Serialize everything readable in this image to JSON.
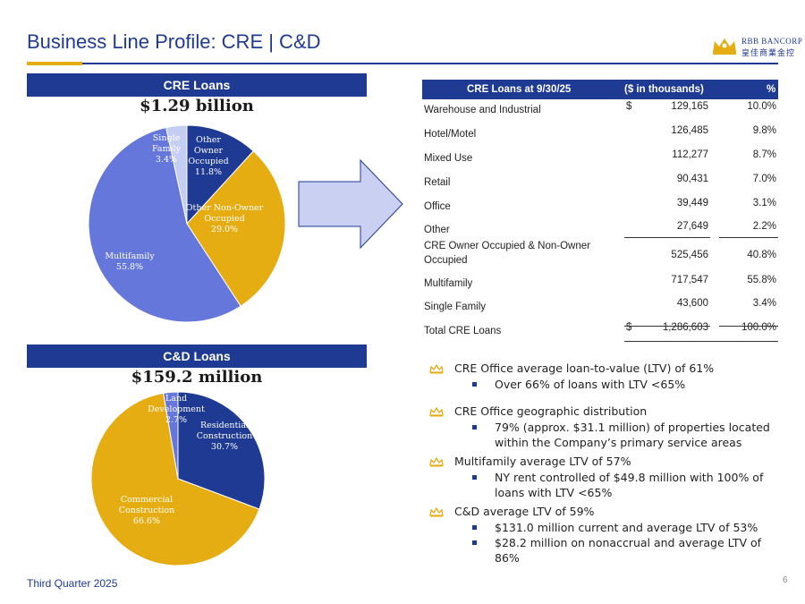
{
  "title": "Business Line Profile:  CRE | C&D",
  "logo": {
    "name": "RBB BANCORP",
    "sub": "皇佳商業金控"
  },
  "cre": {
    "bar_label": "CRE Loans",
    "amount": "$1.29 billion"
  },
  "cd": {
    "bar_label": "C&D Loans",
    "amount": "$159.2 million"
  },
  "chart_data": [
    {
      "type": "pie",
      "title": "CRE Loans",
      "slices": [
        {
          "label": [
            "Other",
            "Owner",
            "Occupied"
          ],
          "pct": "11.8%",
          "value": 11.8,
          "color": "#1f3a93",
          "text_color": "#ffffff"
        },
        {
          "label": [
            "Other Non-Owner",
            "Occupied"
          ],
          "pct": "29.0%",
          "value": 29.0,
          "color": "#e6ad12",
          "text_color": "#ffffff"
        },
        {
          "label": [
            "Multifamily"
          ],
          "pct": "55.8%",
          "value": 55.8,
          "color": "#6677db",
          "text_color": "#ffffff"
        },
        {
          "label": [
            "Single",
            "Family"
          ],
          "pct": "3.4%",
          "value": 3.4,
          "color": "#c5cdf2",
          "text_color": "#ffffff"
        }
      ]
    },
    {
      "type": "pie",
      "title": "C&D Loans",
      "slices": [
        {
          "label": [
            "Residential",
            "Construction"
          ],
          "pct": "30.7%",
          "value": 30.7,
          "color": "#1f3a93",
          "text_color": "#ffffff"
        },
        {
          "label": [
            "Commercial",
            "Construction"
          ],
          "pct": "66.6%",
          "value": 66.6,
          "color": "#e6ad12",
          "text_color": "#ffffff"
        },
        {
          "label": [
            "Land",
            "Development"
          ],
          "pct": "2.7%",
          "value": 2.7,
          "color": "#6677db",
          "text_color": "#ffffff"
        }
      ]
    }
  ],
  "table": {
    "header": {
      "col1": "CRE Loans at 9/30/25",
      "col2": "($ in thousands)",
      "col3": "%"
    },
    "rows": [
      {
        "label": "Warehouse and Industrial",
        "dollar": "$",
        "value": "129,165",
        "pct": "10.0%"
      },
      {
        "label": "Hotel/Motel",
        "dollar": "",
        "value": "126,485",
        "pct": "9.8%"
      },
      {
        "label": "Mixed Use",
        "dollar": "",
        "value": "112,277",
        "pct": "8.7%"
      },
      {
        "label": "Retail",
        "dollar": "",
        "value": "90,431",
        "pct": "7.0%"
      },
      {
        "label": "Office",
        "dollar": "",
        "value": "39,449",
        "pct": "3.1%"
      },
      {
        "label": "Other",
        "dollar": "",
        "value": "27,649",
        "pct": "2.2%"
      },
      {
        "label": "CRE Owner Occupied & Non-Owner",
        "label2": "Occupied",
        "dollar": "",
        "value": "525,456",
        "pct": "40.8%"
      },
      {
        "label": "Multifamily",
        "dollar": "",
        "value": "717,547",
        "pct": "55.8%"
      },
      {
        "label": "Single Family",
        "dollar": "",
        "value": "43,600",
        "pct": "3.4%"
      },
      {
        "label": "Total CRE Loans",
        "dollar": "$",
        "value": "1,286,603",
        "pct": "100.0%"
      }
    ]
  },
  "bullets": [
    {
      "main": "CRE Office average loan-to-value (LTV) of 61%",
      "subs": [
        "Over 66% of loans with LTV <65%"
      ]
    },
    {
      "main": "CRE Office geographic distribution",
      "subs": [
        "79% (approx. $31.1 million) of properties located within the Company’s primary service areas"
      ]
    },
    {
      "main": "Multifamily average LTV of 57%",
      "subs": [
        "NY rent controlled of $49.8 million with 100% of loans with LTV <65%"
      ]
    },
    {
      "main": "C&D average LTV of 59%",
      "subs": [
        "$131.0 million current and average LTV of 53%",
        "$28.2 million on nonaccrual and average LTV of 86%"
      ]
    }
  ],
  "footer": "Third Quarter 2025",
  "page_number": "6"
}
